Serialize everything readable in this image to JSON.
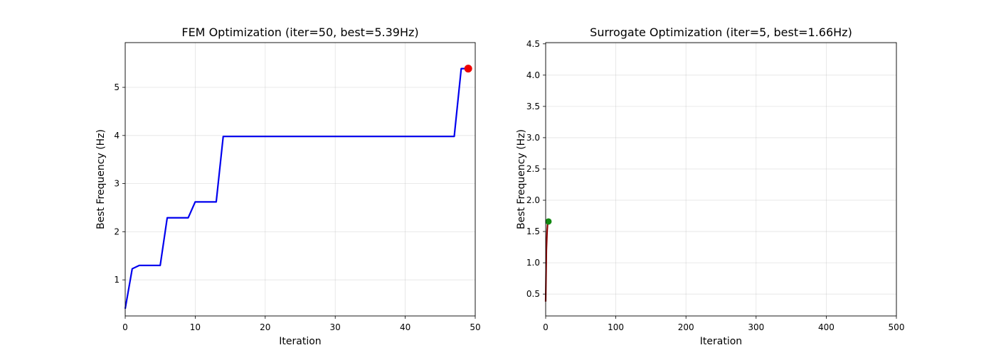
{
  "chart_data": [
    {
      "type": "line",
      "title": "FEM Optimization (iter=50, best=5.39Hz)",
      "xlabel": "Iteration",
      "ylabel": "Best Frequency (Hz)",
      "xlim": [
        0,
        50
      ],
      "ylim": [
        0.25,
        5.93
      ],
      "xticks": [
        0,
        10,
        20,
        30,
        40,
        50
      ],
      "yticks": [
        1,
        2,
        3,
        4,
        5
      ],
      "grid": true,
      "series": [
        {
          "color": "#0000ee",
          "x": [
            0,
            1,
            2,
            5,
            6,
            9,
            10,
            13,
            14,
            47,
            48,
            49
          ],
          "y": [
            0.4,
            1.23,
            1.3,
            1.3,
            2.29,
            2.29,
            2.62,
            2.62,
            3.98,
            3.98,
            5.39,
            5.39
          ]
        }
      ],
      "marker": {
        "x": 49,
        "y": 5.39,
        "color": "#ee0000"
      }
    },
    {
      "type": "line",
      "title": "Surrogate Optimization (iter=5, best=1.66Hz)",
      "xlabel": "Iteration",
      "ylabel": "Best Frequency (Hz)",
      "xlim": [
        0,
        500
      ],
      "ylim": [
        0.15,
        4.52
      ],
      "xticks": [
        0,
        100,
        200,
        300,
        400,
        500
      ],
      "yticks": [
        0.5,
        1.0,
        1.5,
        2.0,
        2.5,
        3.0,
        3.5,
        4.0,
        4.5
      ],
      "ytick_labels": [
        "0.5",
        "1.0",
        "1.5",
        "2.0",
        "2.5",
        "3.0",
        "3.5",
        "4.0",
        "4.5"
      ],
      "grid": true,
      "series": [
        {
          "color": "#8b0000",
          "x": [
            0,
            1,
            2,
            3,
            4
          ],
          "y": [
            0.38,
            1.2,
            1.5,
            1.66,
            1.66
          ]
        }
      ],
      "marker": {
        "x": 4,
        "y": 1.66,
        "color": "#118811"
      }
    }
  ]
}
